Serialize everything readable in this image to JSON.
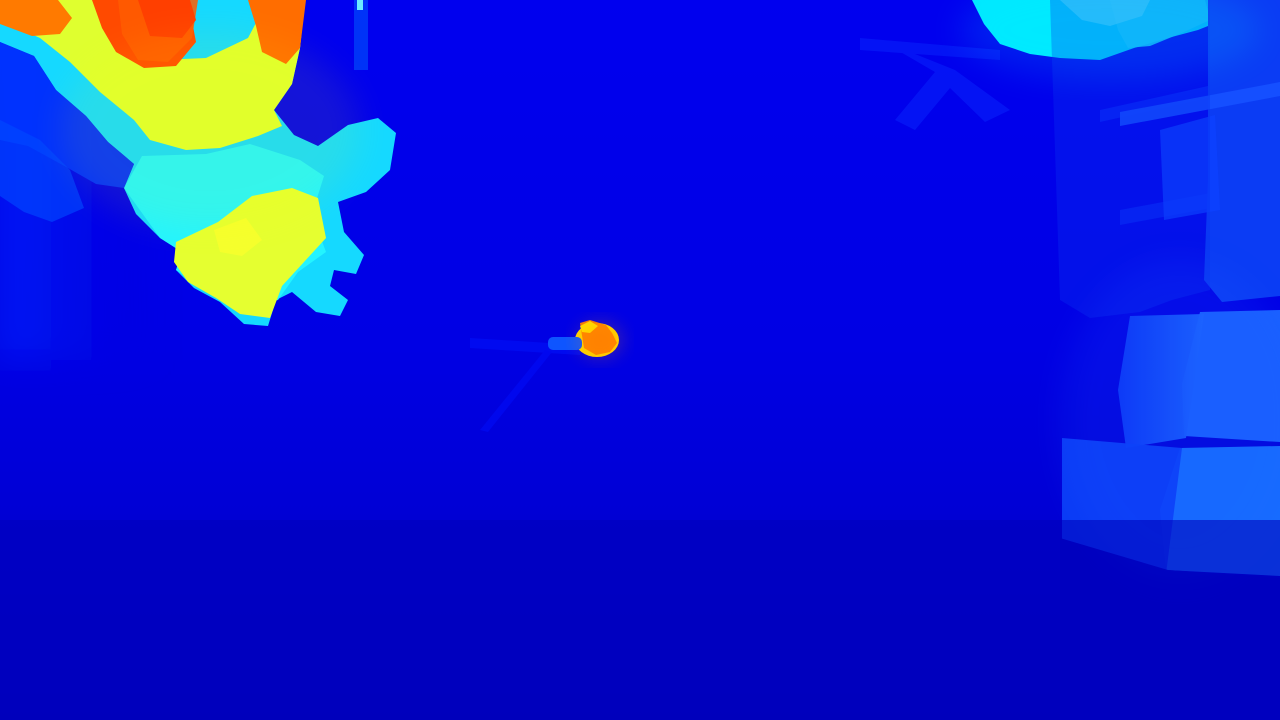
{
  "image": {
    "kind": "depth-map visualization",
    "colormap": "jet",
    "palette": {
      "background": "#0000d8",
      "background_dark": "#0000b8",
      "background_mid": "#0000ee",
      "blue_light": "#1a5cff",
      "blue_medium": "#0a34f5",
      "cyan": "#00e8ff",
      "cyan_light": "#23f4ff",
      "yellow": "#e6ff2a",
      "yellow_orange": "#ffd400",
      "orange": "#ff7a00",
      "red_orange": "#ff4a00"
    },
    "regions": [
      "near-object-upper-left",
      "small-near-object-center",
      "right-side-structures",
      "top-right-cyan-region",
      "background-floor"
    ]
  }
}
